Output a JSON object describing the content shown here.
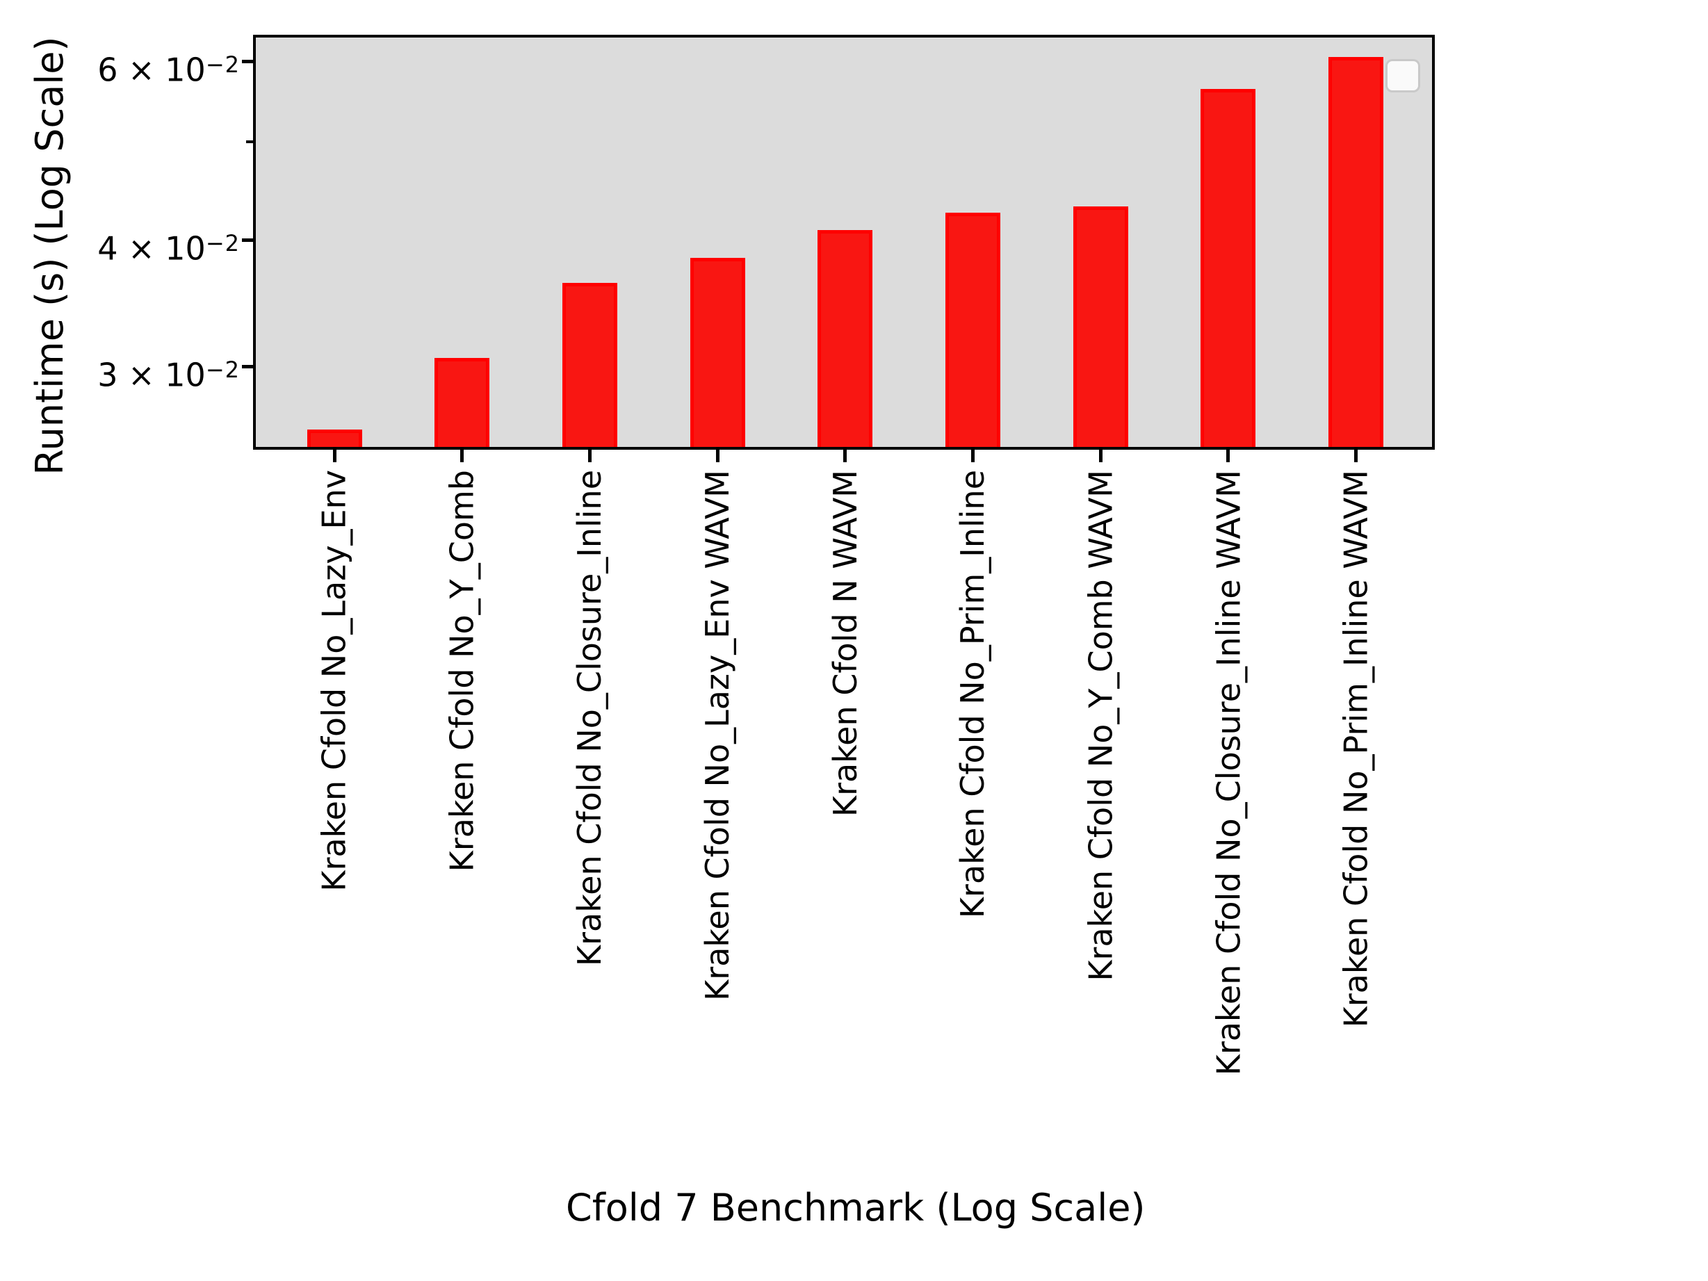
{
  "chart_data": {
    "type": "bar",
    "title": "",
    "xlabel": "Cfold 7 Benchmark (Log Scale)",
    "ylabel": "Runtime (s) (Log Scale)",
    "yscale": "log",
    "grid": false,
    "plot_bg_color": "#dcdcdc",
    "bar_color": "#f91612",
    "bar_edge_color": "#ff0000",
    "categories": [
      "Kraken Cfold No_Lazy_Env",
      "Kraken Cfold No_Y_Comb",
      "Kraken Cfold No_Closure_Inline",
      "Kraken Cfold No_Lazy_Env WAVM",
      "Kraken Cfold N WAVM",
      "Kraken Cfold No_Prim_Inline",
      "Kraken Cfold No_Y_Comb WAVM",
      "Kraken Cfold No_Closure_Inline WAVM",
      "Kraken Cfold No_Prim_Inline WAVM"
    ],
    "values": [
      0.026,
      0.0306,
      0.0363,
      0.0384,
      0.0409,
      0.0426,
      0.0432,
      0.0564,
      0.0607
    ],
    "ylim": [
      0.025,
      0.0634
    ],
    "yticks": [
      {
        "value": 0.06,
        "major": true,
        "label_mantissa": "6 × 10",
        "label_exponent": "−2"
      },
      {
        "value": 0.05,
        "major": false,
        "label_mantissa": "",
        "label_exponent": ""
      },
      {
        "value": 0.04,
        "major": true,
        "label_mantissa": "4 × 10",
        "label_exponent": "−2"
      },
      {
        "value": 0.03,
        "major": true,
        "label_mantissa": "3 × 10",
        "label_exponent": "−2"
      }
    ],
    "legend": {
      "visible": true,
      "entries": []
    }
  }
}
